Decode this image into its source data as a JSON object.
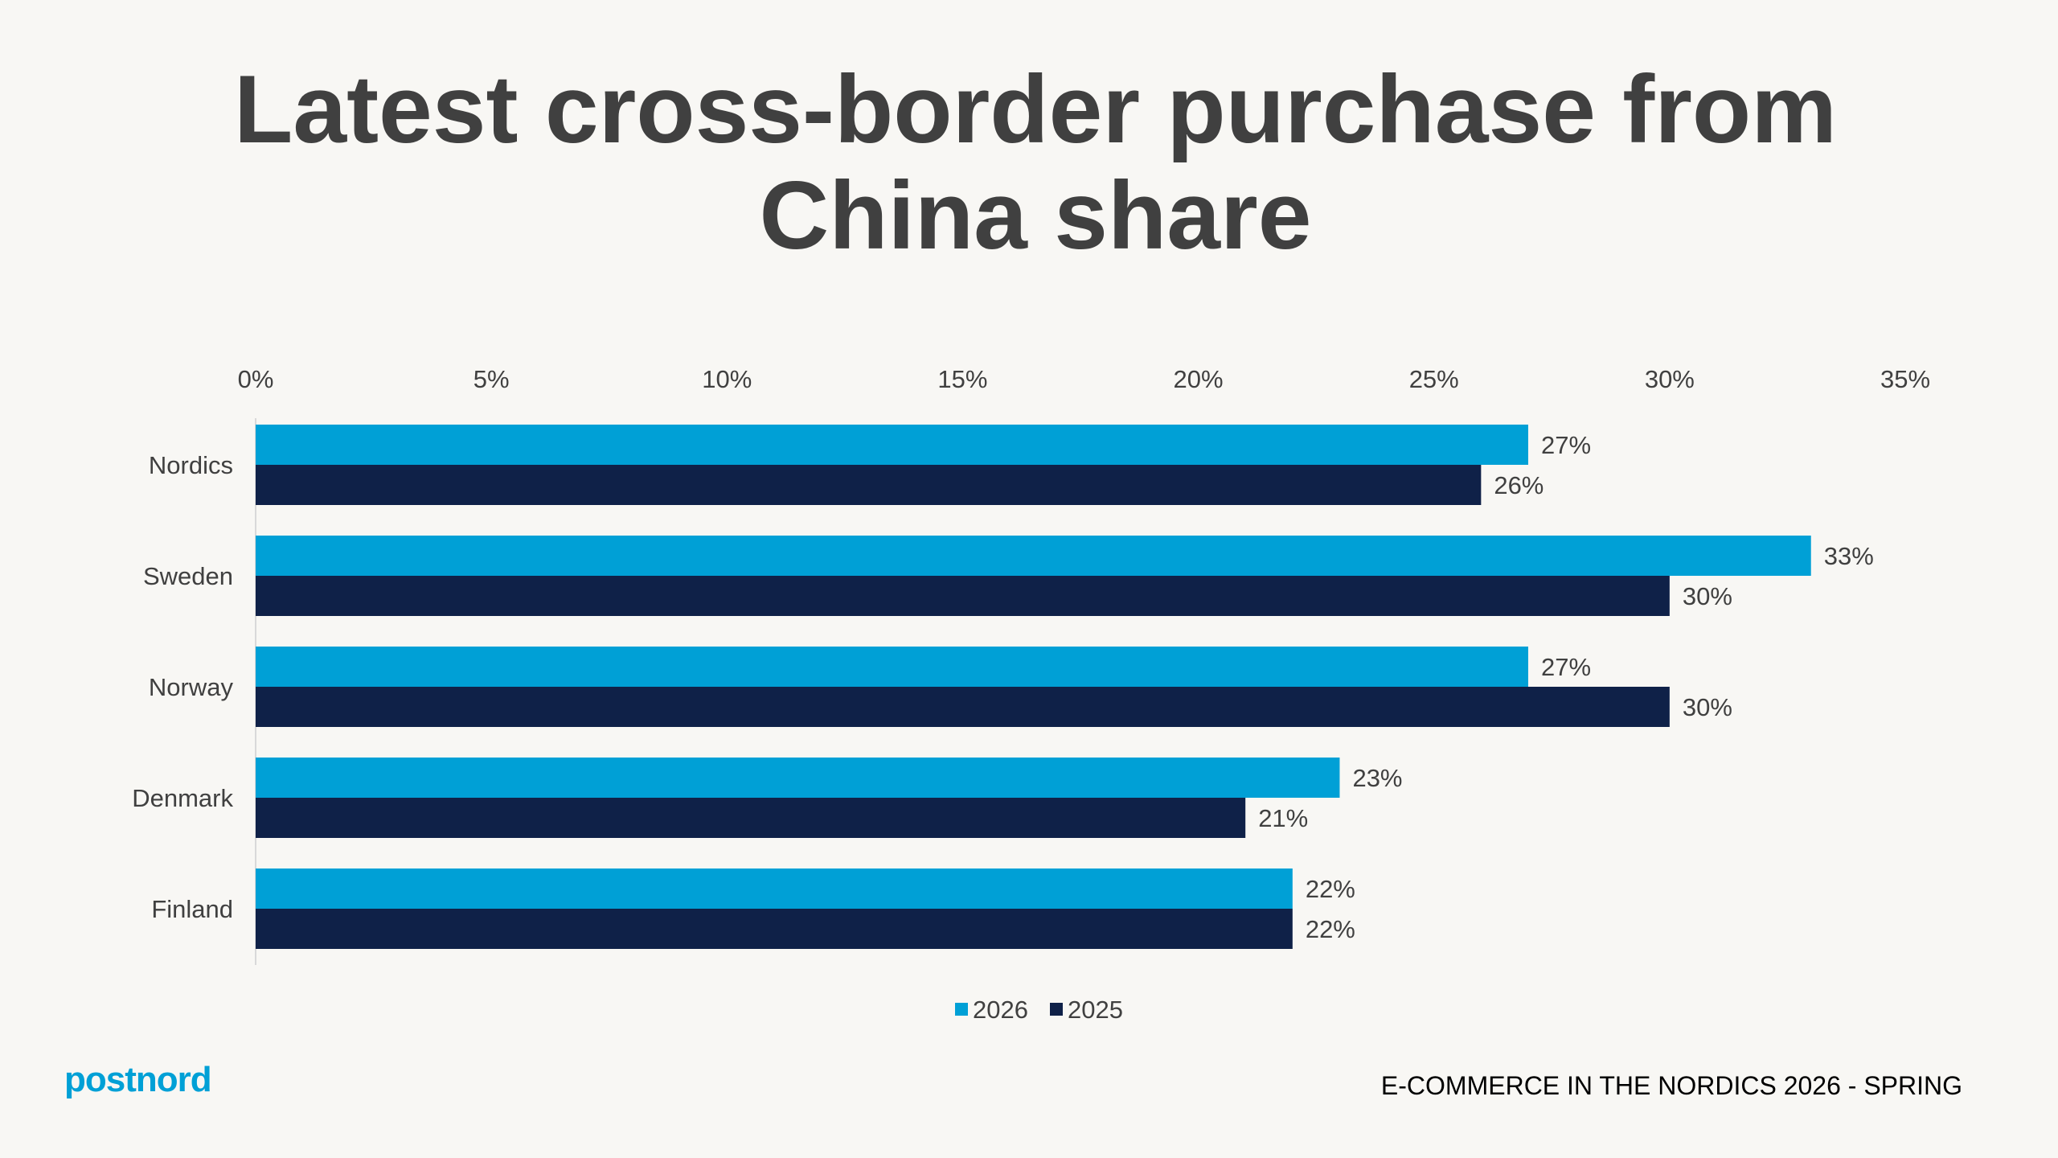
{
  "title_lines": [
    "Latest cross-border purchase from",
    "China share"
  ],
  "brand": {
    "logo_text": "postnord"
  },
  "footer": {
    "text": "E-COMMERCE IN THE NORDICS 2026 - SPRING"
  },
  "colors": {
    "series_2026": "#00a0d6",
    "series_2025": "#0f2148",
    "text": "#404040",
    "background": "#f8f7f4"
  },
  "chart_data": {
    "type": "bar",
    "orientation": "horizontal",
    "title": "Latest cross-border purchase from China share",
    "categories": [
      "Nordics",
      "Sweden",
      "Norway",
      "Denmark",
      "Finland"
    ],
    "series": [
      {
        "name": "2026",
        "values": [
          27,
          33,
          27,
          23,
          22
        ],
        "color": "#00a0d6"
      },
      {
        "name": "2025",
        "values": [
          26,
          30,
          30,
          21,
          22
        ],
        "color": "#0f2148"
      }
    ],
    "x_ticks": [
      0,
      5,
      10,
      15,
      20,
      25,
      30,
      35
    ],
    "x_tick_labels": [
      "0%",
      "5%",
      "10%",
      "15%",
      "20%",
      "25%",
      "30%",
      "35%"
    ],
    "value_suffix": "%",
    "xlim": [
      0,
      35
    ],
    "x_axis_position": "top",
    "grid": false,
    "legend_position": "bottom-center"
  }
}
